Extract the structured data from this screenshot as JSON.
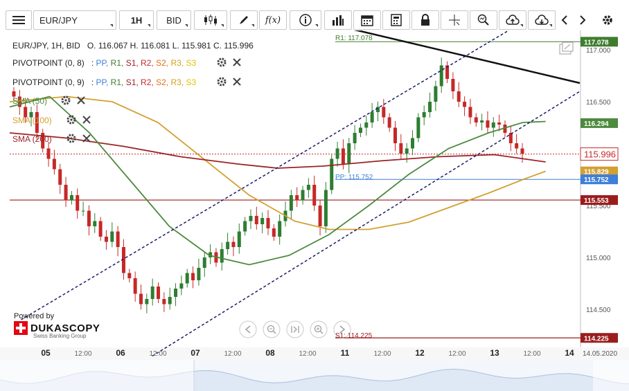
{
  "toolbar": {
    "symbol": "EUR/JPY",
    "timeframe": "1H",
    "side": "BID",
    "fx_label": "f(x)",
    "icons": [
      "menu-icon",
      "candlestick-icon",
      "pencil-icon",
      "function-icon",
      "info-icon",
      "volume-bars-icon",
      "calendar-icon",
      "calculator-icon",
      "lock-icon",
      "crosshair-icon",
      "zoom-icon",
      "upload-cloud-icon",
      "download-cloud-icon",
      "chevron-left-icon",
      "chevron-right-icon",
      "gear-icon"
    ]
  },
  "legend": {
    "header": "EUR/JPY, 1H, BID",
    "ohlc": "O. 116.067 H. 116.081 L. 115.981 C. 115.996",
    "pivot1": "PIVOTPOINT (0, 8)",
    "pivot2": "PIVOTPOINT (0, 9)",
    "pivot_parts": [
      ":",
      "PP,",
      "R1,",
      "S1,",
      "R2,",
      "S2,",
      "R3,",
      "S3"
    ],
    "sma50": "SMA (50)",
    "sma100": "SMA (100)",
    "sma200": "SMA (200)"
  },
  "branding": {
    "powered_by": "Powered by",
    "name": "DUKASCOPY",
    "tagline": "Swiss Banking Group"
  },
  "colors": {
    "candle_up": "#2e7d32",
    "candle_down": "#c62828",
    "sma50": "#4c8a3e",
    "sma100": "#d3a032",
    "sma200": "#9b2226",
    "channel": "#1c1c6c",
    "trendline": "#111111",
    "pp": "#3d7fd9",
    "r1": "#3e7d2e",
    "s1": "#9b1c1c",
    "r2": "#c62828",
    "s2": "#e1701a",
    "r3": "#d4a017",
    "s3": "#e0c200"
  },
  "chart_data": {
    "type": "candlestick",
    "symbol": "EUR/JPY",
    "timeframe": "1H",
    "ylim": [
      114.2,
      117.2
    ],
    "y_ticks": [
      "117.000",
      "116.500",
      "116.000",
      "115.500",
      "115.000",
      "114.500"
    ],
    "x_ticks": [
      "05",
      "12:00",
      "06",
      "12:00",
      "07",
      "12:00",
      "08",
      "12:00",
      "11",
      "12:00",
      "12",
      "12:00",
      "13",
      "12:00",
      "14"
    ],
    "x_date": "14.05.2020",
    "last": {
      "open": 116.067,
      "high": 116.081,
      "low": 115.981,
      "close": 115.996
    },
    "price_labels": [
      {
        "label": "117.078",
        "value": 117.078,
        "color": "#3e7d2e"
      },
      {
        "label": "116.294",
        "value": 116.294,
        "color": "#4c8a3e"
      },
      {
        "label": "115.996",
        "value": 115.996,
        "color": "#c62828"
      },
      {
        "label": "115.829",
        "value": 115.829,
        "color": "#d3a032"
      },
      {
        "label": "115.752",
        "value": 115.752,
        "color": "#3d7fd9"
      },
      {
        "label": "115.553",
        "value": 115.553,
        "color": "#9b1c1c"
      },
      {
        "label": "114.225",
        "value": 114.225,
        "color": "#9b1c1c"
      }
    ],
    "levels": [
      {
        "name": "R1",
        "label": "R1: 117.078",
        "value": 117.078
      },
      {
        "name": "PP",
        "label": "PP: 115.752",
        "value": 115.752
      },
      {
        "name": "S1",
        "label": "S1: 114.225",
        "value": 114.225
      },
      {
        "name": "S1_prev",
        "value": 115.553
      }
    ],
    "series": {
      "sma50": [
        [
          0,
          116.45
        ],
        [
          0.07,
          116.55
        ],
        [
          0.14,
          116.2
        ],
        [
          0.21,
          115.75
        ],
        [
          0.28,
          115.3
        ],
        [
          0.35,
          115.02
        ],
        [
          0.42,
          114.93
        ],
        [
          0.49,
          115.02
        ],
        [
          0.56,
          115.22
        ],
        [
          0.63,
          115.5
        ],
        [
          0.7,
          115.8
        ],
        [
          0.77,
          116.05
        ],
        [
          0.84,
          116.2
        ],
        [
          0.9,
          116.3
        ],
        [
          0.94,
          116.31
        ]
      ],
      "sma100": [
        [
          0,
          116.5
        ],
        [
          0.1,
          116.55
        ],
        [
          0.18,
          116.5
        ],
        [
          0.26,
          116.3
        ],
        [
          0.34,
          115.95
        ],
        [
          0.42,
          115.6
        ],
        [
          0.5,
          115.35
        ],
        [
          0.56,
          115.27
        ],
        [
          0.63,
          115.27
        ],
        [
          0.7,
          115.34
        ],
        [
          0.77,
          115.48
        ],
        [
          0.84,
          115.62
        ],
        [
          0.9,
          115.75
        ],
        [
          0.94,
          115.83
        ]
      ],
      "sma200": [
        [
          0,
          116.2
        ],
        [
          0.1,
          116.15
        ],
        [
          0.2,
          116.07
        ],
        [
          0.3,
          115.97
        ],
        [
          0.4,
          115.9
        ],
        [
          0.47,
          115.86
        ],
        [
          0.55,
          115.88
        ],
        [
          0.65,
          115.93
        ],
        [
          0.75,
          115.97
        ],
        [
          0.85,
          115.99
        ],
        [
          0.94,
          115.92
        ]
      ],
      "trendline": [
        [
          0.5,
          117.33
        ],
        [
          1.0,
          116.68
        ]
      ],
      "channel_upper": [
        [
          0.02,
          114.4
        ],
        [
          0.91,
          117.3
        ]
      ],
      "channel_lower": [
        [
          0.25,
          114.05
        ],
        [
          1.0,
          116.6
        ]
      ],
      "closes": [
        116.55,
        116.45,
        116.35,
        116.4,
        116.2,
        116.05,
        115.95,
        115.85,
        115.7,
        115.55,
        115.6,
        115.45,
        115.45,
        115.3,
        115.35,
        115.2,
        115.15,
        115.25,
        115.1,
        114.85,
        114.8,
        114.65,
        114.55,
        114.6,
        114.72,
        114.6,
        114.55,
        114.62,
        114.7,
        114.75,
        114.85,
        114.78,
        114.9,
        115.0,
        115.05,
        114.95,
        115.08,
        115.15,
        115.1,
        115.25,
        115.35,
        115.4,
        115.32,
        115.38,
        115.28,
        115.2,
        115.35,
        115.45,
        115.6,
        115.55,
        115.65,
        115.7,
        115.5,
        115.3,
        115.65,
        115.95,
        116.05,
        115.9,
        116.1,
        116.2,
        116.25,
        116.3,
        116.4,
        116.45,
        116.35,
        116.25,
        116.1,
        116.0,
        116.05,
        116.15,
        116.35,
        116.4,
        116.5,
        116.65,
        116.85,
        116.72,
        116.6,
        116.5,
        116.45,
        116.35,
        116.3,
        116.32,
        116.25,
        116.3,
        116.28,
        116.2,
        116.1,
        116.05,
        116.0
      ]
    }
  }
}
